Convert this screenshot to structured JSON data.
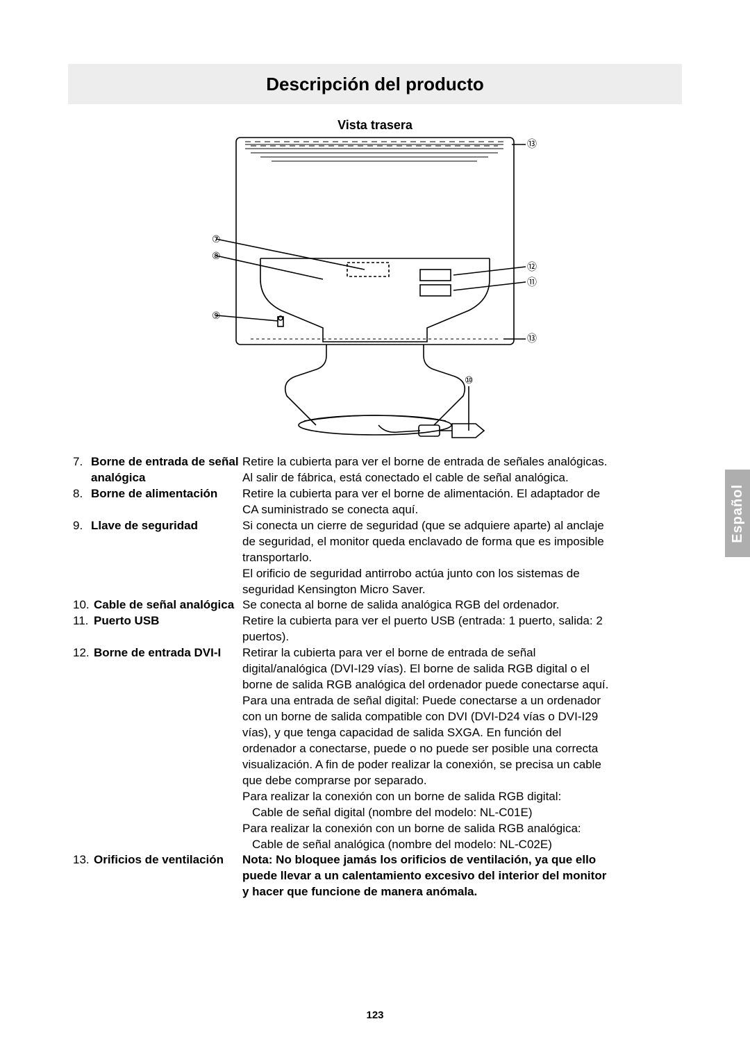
{
  "title": "Descripción del producto",
  "subtitle": "Vista trasera",
  "language_tab": "Español",
  "page_number": "123",
  "diagram": {
    "type": "line-drawing",
    "stroke": "#000000",
    "stroke_width": 1.6,
    "callouts_left": [
      "⑦",
      "⑧",
      "⑨"
    ],
    "callouts_right": [
      "⑬",
      "⑫",
      "⑪",
      "⑬",
      "⑩"
    ]
  },
  "items": [
    {
      "num": "7.",
      "label": "Borne de entrada de señal analógica",
      "desc": [
        "Retire la cubierta para ver el borne de entrada de señales analógicas. Al salir de fábrica, está conectado el cable de señal analógica."
      ]
    },
    {
      "num": "8.",
      "label": "Borne de alimentación",
      "desc": [
        "Retire la cubierta para ver el borne de alimentación. El adaptador de CA suministrado se conecta aquí."
      ]
    },
    {
      "num": "9.",
      "label": "Llave de seguridad",
      "desc": [
        "Si conecta un cierre de seguridad (que se adquiere aparte) al anclaje de seguridad, el monitor queda enclavado de forma que es imposible transportarlo.",
        "El orificio de seguridad antirrobo actúa junto con los sistemas de seguridad Kensington Micro Saver."
      ]
    },
    {
      "num": "10.",
      "label": "Cable de señal analógica",
      "desc": [
        "Se conecta al borne de salida analógica RGB del ordenador."
      ]
    },
    {
      "num": "11.",
      "label": "Puerto USB",
      "desc": [
        "Retire la cubierta para ver el puerto USB (entrada: 1 puerto, salida: 2 puertos)."
      ]
    },
    {
      "num": "12.",
      "label": "Borne de entrada DVI-I",
      "desc": [
        "Retirar la cubierta para ver el borne de entrada de señal digital/analógica (DVI-I29 vías). El borne de salida RGB digital o el borne de salida RGB analógica del ordenador puede conectarse aquí.",
        "Para una entrada de señal digital: Puede conectarse a un ordenador con un borne de salida compatible con DVI (DVI-D24 vías o DVI-I29 vías), y que tenga capacidad de salida SXGA. En función del ordenador a conectarse, puede o no puede ser posible una correcta visualización. A fin de poder realizar la conexión, se precisa un cable que debe comprarse por separado.",
        "Para realizar la conexión con un borne de salida RGB digital:",
        "__INDENT__Cable de señal digital (nombre del modelo: NL-C01E)",
        "Para realizar la conexión con un borne de salida RGB analógica:",
        "__INDENT__Cable de señal analógica (nombre del modelo: NL-C02E)"
      ]
    },
    {
      "num": "13.",
      "label": "Orificios de ventilación",
      "desc_bold": true,
      "desc": [
        "Nota: No bloquee jamás los orificios de ventilación, ya que ello puede llevar a un calentamiento excesivo del interior del monitor y hacer que funcione de manera anómala."
      ]
    }
  ]
}
